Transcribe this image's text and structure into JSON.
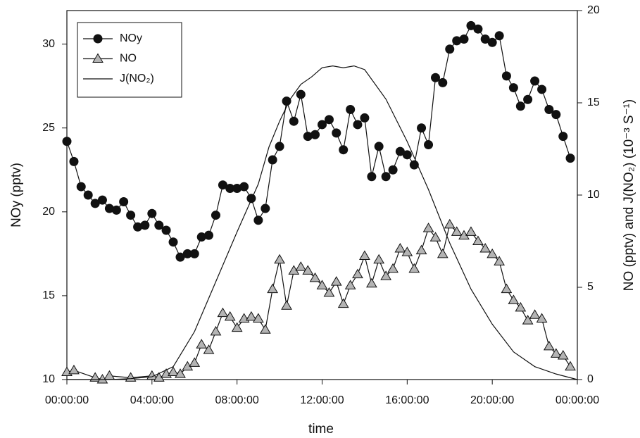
{
  "chart_data": {
    "type": "line",
    "x_label": "time",
    "y_label": "NOy (pptv)",
    "y2_label": "NO (pptv) and J(NO₂) (10⁻³ S⁻¹)",
    "xlim": [
      0,
      24
    ],
    "xticks": [
      {
        "value": 0,
        "label": "00:00:00"
      },
      {
        "value": 4,
        "label": "04:00:00"
      },
      {
        "value": 8,
        "label": "08:00:00"
      },
      {
        "value": 12,
        "label": "12:00:00"
      },
      {
        "value": 16,
        "label": "16:00:00"
      },
      {
        "value": 20,
        "label": "20:00:00"
      },
      {
        "value": 24,
        "label": "00:00:00"
      }
    ],
    "ylim": [
      10,
      32
    ],
    "yticks": [
      10,
      15,
      20,
      25,
      30
    ],
    "y2lim": [
      0,
      20
    ],
    "y2ticks": [
      0,
      5,
      10,
      15,
      20
    ],
    "legend": "upper left",
    "series": [
      {
        "name": "NOy",
        "color": "#111111",
        "marker": "circle",
        "x": [
          0,
          0.33,
          0.67,
          1,
          1.33,
          1.67,
          2,
          2.33,
          2.67,
          3,
          3.33,
          3.67,
          4,
          4.33,
          4.67,
          5,
          5.33,
          5.67,
          6,
          6.33,
          6.67,
          7,
          7.33,
          7.67,
          8,
          8.33,
          8.67,
          9,
          9.33,
          9.67,
          10,
          10.33,
          10.67,
          11,
          11.33,
          11.67,
          12,
          12.33,
          12.67,
          13,
          13.33,
          13.67,
          14,
          14.33,
          14.67,
          15,
          15.33,
          15.67,
          16,
          16.33,
          16.67,
          17,
          17.33,
          17.67,
          18,
          18.33,
          18.67,
          19,
          19.33,
          19.67,
          20,
          20.33,
          20.67,
          21,
          21.33,
          21.67,
          22,
          22.33,
          22.67,
          23,
          23.33,
          23.67
        ],
        "values": [
          24.2,
          23.0,
          21.5,
          21.0,
          20.5,
          20.7,
          20.2,
          20.1,
          20.6,
          19.8,
          19.1,
          19.2,
          19.9,
          19.2,
          18.9,
          18.2,
          17.3,
          17.5,
          17.5,
          18.5,
          18.6,
          19.8,
          21.6,
          21.4,
          21.4,
          21.5,
          20.8,
          19.5,
          20.2,
          23.1,
          23.9,
          26.6,
          25.4,
          27.0,
          24.5,
          24.6,
          25.2,
          25.5,
          24.7,
          23.7,
          26.1,
          25.2,
          25.6,
          22.1,
          23.9,
          22.1,
          22.5,
          23.6,
          23.4,
          22.8,
          25.0,
          24.0,
          28.0,
          27.7,
          29.7,
          30.2,
          30.3,
          31.1,
          30.9,
          30.3,
          30.1,
          30.5,
          28.1,
          27.4,
          26.3,
          26.7,
          27.8,
          27.3,
          26.1,
          25.8,
          24.5,
          23.2
        ]
      },
      {
        "name": "NO",
        "color": "#b4b4b4",
        "marker": "triangle",
        "axis": "y2",
        "x": [
          0,
          0.33,
          1.33,
          1.67,
          2,
          3,
          4,
          4.33,
          4.67,
          5,
          5.33,
          5.67,
          6,
          6.33,
          6.67,
          7,
          7.33,
          7.67,
          8,
          8.33,
          8.67,
          9,
          9.33,
          9.67,
          10,
          10.33,
          10.67,
          11,
          11.33,
          11.67,
          12,
          12.33,
          12.67,
          13,
          13.33,
          13.67,
          14,
          14.33,
          14.67,
          15,
          15.33,
          15.67,
          16,
          16.33,
          16.67,
          17,
          17.33,
          17.67,
          18,
          18.33,
          18.67,
          19,
          19.33,
          19.67,
          20,
          20.33,
          20.67,
          21,
          21.33,
          21.67,
          22,
          22.33,
          22.67,
          23,
          23.33,
          23.67
        ],
        "values": [
          0.4,
          0.5,
          0.1,
          0.0,
          0.2,
          0.1,
          0.2,
          0.1,
          0.3,
          0.4,
          0.3,
          0.7,
          0.9,
          1.9,
          1.6,
          2.6,
          3.6,
          3.4,
          2.8,
          3.3,
          3.4,
          3.3,
          2.7,
          4.9,
          6.5,
          4.0,
          5.9,
          6.1,
          5.9,
          5.5,
          5.1,
          4.7,
          5.3,
          4.1,
          5.1,
          5.7,
          6.7,
          5.2,
          6.5,
          5.6,
          6.0,
          7.1,
          6.9,
          6.0,
          7.0,
          8.2,
          7.7,
          6.8,
          8.4,
          8.0,
          7.8,
          8.0,
          7.5,
          7.1,
          6.8,
          6.4,
          4.9,
          4.3,
          3.9,
          3.2,
          3.5,
          3.3,
          1.8,
          1.4,
          1.3,
          0.7
        ]
      },
      {
        "name": "J(NO₂)",
        "color": "#111111",
        "marker": "none",
        "axis": "y2",
        "x": [
          0,
          1,
          2,
          3,
          4,
          5,
          6,
          7,
          8,
          9,
          9.5,
          10,
          10.5,
          11,
          11.5,
          12,
          12.5,
          13,
          13.5,
          14,
          15,
          16,
          17,
          18,
          19,
          20,
          21,
          22,
          23,
          24
        ],
        "values": [
          0,
          0,
          0,
          0.05,
          0.15,
          0.7,
          2.6,
          5.3,
          8.0,
          10.6,
          12.6,
          14.0,
          15.2,
          16.0,
          16.4,
          16.9,
          17.0,
          16.9,
          17.0,
          16.8,
          15.2,
          12.9,
          10.3,
          7.4,
          4.9,
          3.0,
          1.5,
          0.7,
          0.3,
          0
        ]
      }
    ]
  }
}
